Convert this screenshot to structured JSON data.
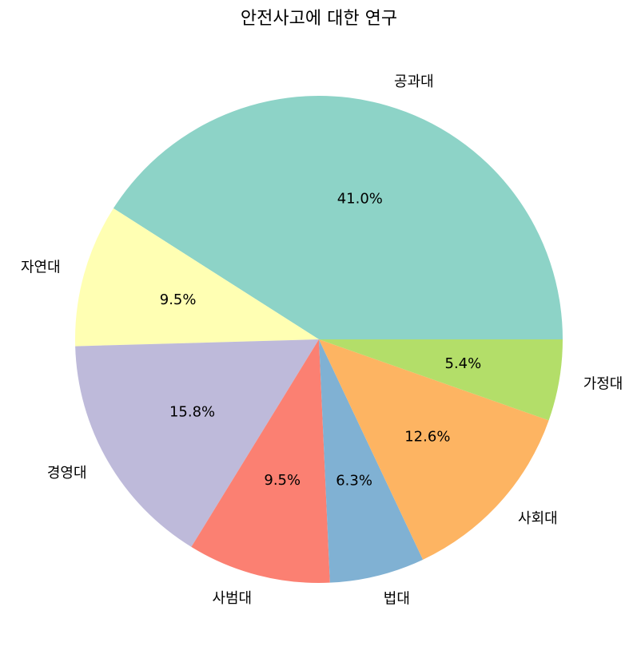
{
  "chart_data": {
    "type": "pie",
    "title": "안전사고에 대한 연구",
    "categories": [
      "공과대",
      "자연대",
      "경영대",
      "사범대",
      "법대",
      "사회대",
      "가정대"
    ],
    "values": [
      41.0,
      9.5,
      15.8,
      9.5,
      6.3,
      12.6,
      5.4
    ],
    "value_labels": [
      "41.0%",
      "9.5%",
      "15.8%",
      "9.5%",
      "6.3%",
      "12.6%",
      "5.4%"
    ],
    "colors": [
      "#8dd3c7",
      "#ffffb3",
      "#bebada",
      "#fb8072",
      "#80b1d3",
      "#fdb462",
      "#b3de69"
    ]
  }
}
